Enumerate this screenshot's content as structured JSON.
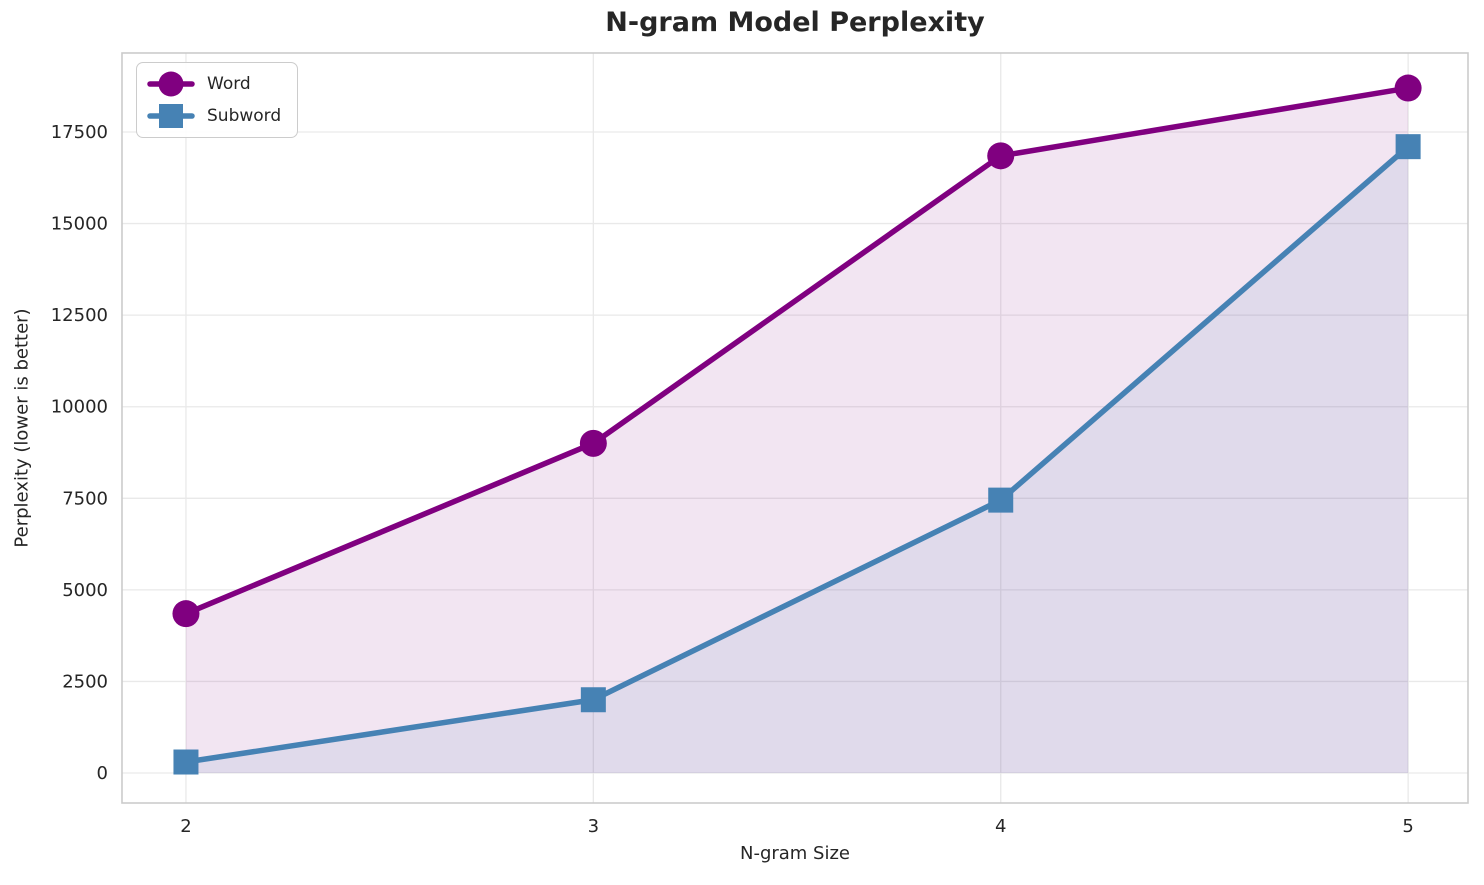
{
  "chart_data": {
    "type": "line",
    "title": "N-gram Model Perplexity",
    "xlabel": "N-gram Size",
    "ylabel": "Perplexity (lower is better)",
    "x": [
      2,
      3,
      4,
      5
    ],
    "x_ticks": [
      2,
      3,
      4,
      5
    ],
    "y_ticks": [
      0,
      2500,
      5000,
      7500,
      10000,
      12500,
      15000,
      17500
    ],
    "xlim": [
      1.843,
      5.147
    ],
    "ylim": [
      -819,
      19657
    ],
    "grid": true,
    "legend_position": "upper left",
    "fill_to_zero": true,
    "series": [
      {
        "name": "Word",
        "marker": "circle",
        "color": "#800080",
        "fill_alpha": 0.1,
        "values": [
          4350,
          9000,
          16850,
          18700
        ]
      },
      {
        "name": "Subword",
        "marker": "square",
        "color": "#4682B4",
        "fill_alpha": 0.1,
        "values": [
          300,
          2000,
          7450,
          17100
        ]
      }
    ],
    "style": {
      "background": "#ffffff",
      "grid_color": "#e9e9e9",
      "spine_color": "#cbcbcb",
      "text_color": "#262626"
    }
  }
}
